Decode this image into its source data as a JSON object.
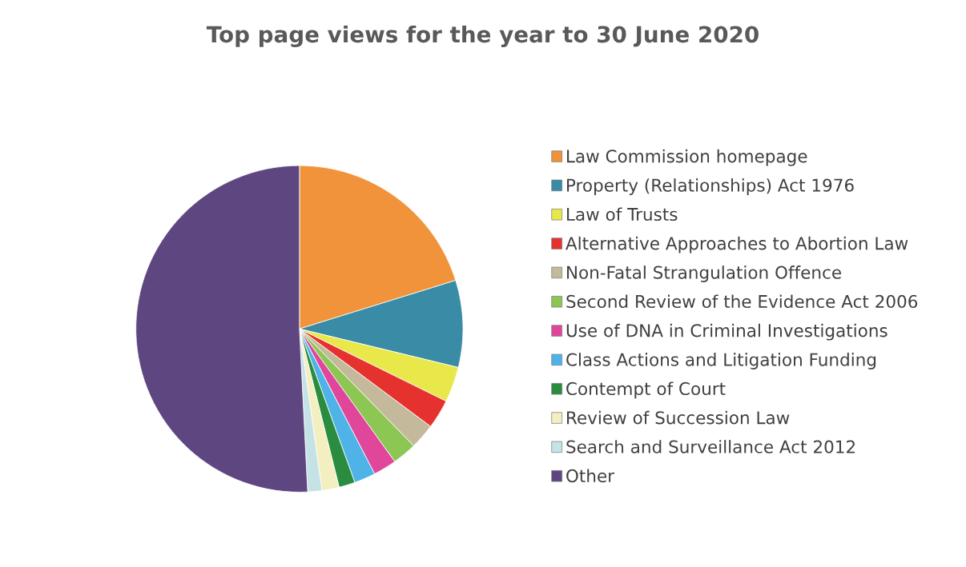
{
  "chart_data": {
    "type": "pie",
    "title": "Top page views for the year to 30 June 2020",
    "categories": [
      "Law Commission homepage",
      "Property (Relationships) Act 1976",
      "Law of Trusts",
      "Alternative Approaches to Abortion Law",
      "Non-Fatal Strangulation Offence",
      "Second Review of the Evidence Act 2006",
      "Use of DNA in Criminal Investigations",
      "Class Actions and Litigation Funding",
      "Contempt of Court",
      "Review of Succession Law",
      "Search and Surveillance Act 2012",
      "Other"
    ],
    "values": [
      20.2,
      8.6,
      3.5,
      2.9,
      2.5,
      2.4,
      2.3,
      2.1,
      1.6,
      1.7,
      1.4,
      50.8
    ],
    "colors": [
      "#f0933a",
      "#3a8ba5",
      "#e8e84a",
      "#e5322e",
      "#c4b99a",
      "#8dc753",
      "#e0479b",
      "#4fb3e8",
      "#2a8c3e",
      "#f3efc0",
      "#c5e3e6",
      "#5e4680"
    ],
    "legend": "right"
  }
}
